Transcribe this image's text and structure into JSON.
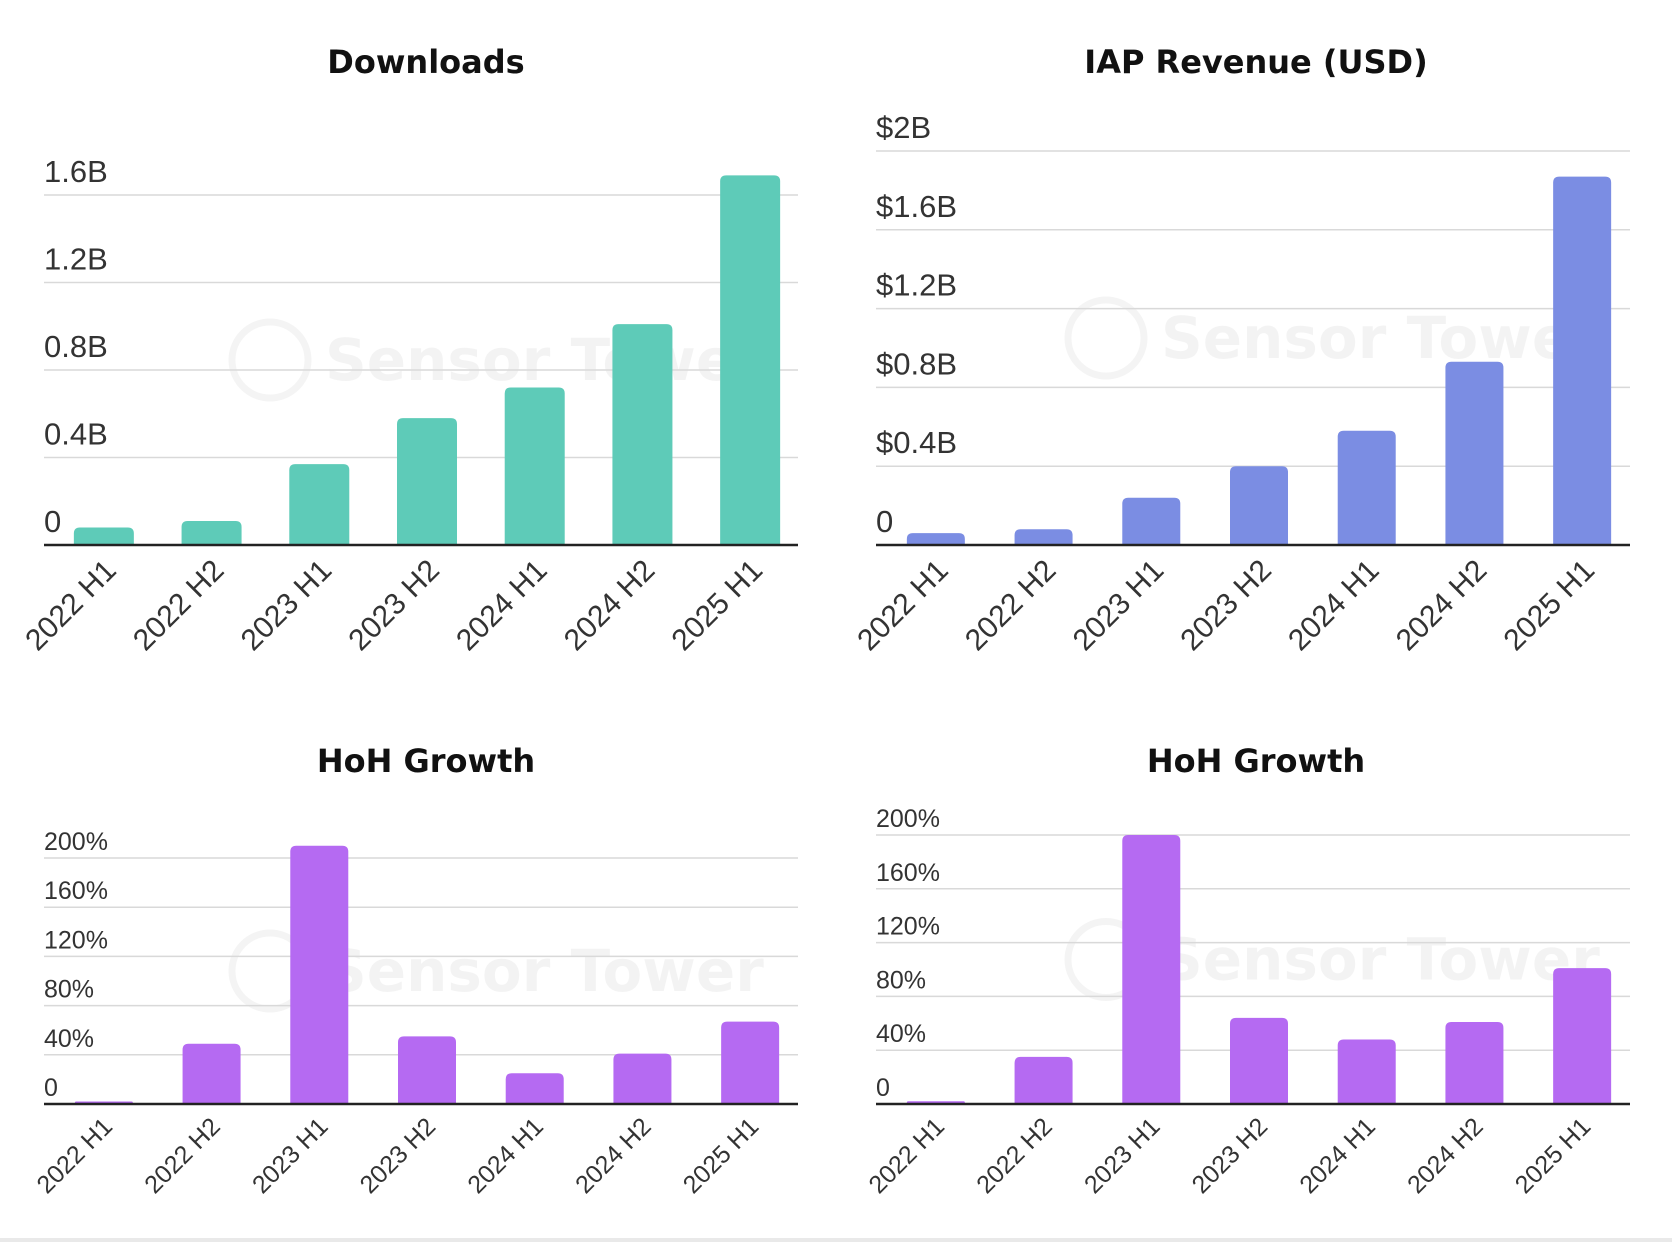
{
  "colors": {
    "downloads": "#5ECBB8",
    "revenue": "#7B8DE3",
    "growth": "#B56AF2"
  },
  "watermark": "Sensor Tower",
  "chart_data": [
    {
      "type": "bar",
      "title": "Downloads",
      "categories": [
        "2022 H1",
        "2022 H2",
        "2023 H1",
        "2023 H2",
        "2024 H1",
        "2024 H2",
        "2025 H1"
      ],
      "values": [
        0.08,
        0.11,
        0.37,
        0.58,
        0.72,
        1.01,
        1.69
      ],
      "ylim": [
        0,
        1.6
      ],
      "yticks": [
        0,
        0.4,
        0.8,
        1.2,
        1.6
      ],
      "ytick_labels": [
        "0",
        "0.4B",
        "0.8B",
        "1.2B",
        "1.6B"
      ],
      "grid": true,
      "color": "#5ECBB8"
    },
    {
      "type": "bar",
      "title": "IAP Revenue (USD)",
      "categories": [
        "2022 H1",
        "2022 H2",
        "2023 H1",
        "2023 H2",
        "2024 H1",
        "2024 H2",
        "2025 H1"
      ],
      "values": [
        0.06,
        0.08,
        0.24,
        0.4,
        0.58,
        0.93,
        1.87
      ],
      "ylim": [
        0,
        2
      ],
      "yticks": [
        0,
        0.4,
        0.8,
        1.2,
        1.6,
        2
      ],
      "ytick_labels": [
        "0",
        "$0.4B",
        "$0.8B",
        "$1.2B",
        "$1.6B",
        "$2B"
      ],
      "grid": true,
      "color": "#7B8DE3"
    },
    {
      "type": "bar",
      "title": "HoH Growth",
      "categories": [
        "2022 H1",
        "2022 H2",
        "2023 H1",
        "2023 H2",
        "2024 H1",
        "2024 H2",
        "2025 H1"
      ],
      "values": [
        2,
        49,
        210,
        55,
        25,
        41,
        67
      ],
      "ylim": [
        0,
        200
      ],
      "yticks": [
        0,
        40,
        80,
        120,
        160,
        200
      ],
      "ytick_labels": [
        "0",
        "40%",
        "80%",
        "120%",
        "160%",
        "200%"
      ],
      "grid": true,
      "color": "#B56AF2"
    },
    {
      "type": "bar",
      "title": "HoH Growth",
      "categories": [
        "2022 H1",
        "2022 H2",
        "2023 H1",
        "2023 H2",
        "2024 H1",
        "2024 H2",
        "2025 H1"
      ],
      "values": [
        2,
        35,
        200,
        64,
        48,
        61,
        101
      ],
      "ylim": [
        0,
        200
      ],
      "yticks": [
        0,
        40,
        80,
        120,
        160,
        200
      ],
      "ytick_labels": [
        "0",
        "40%",
        "80%",
        "120%",
        "160%",
        "200%"
      ],
      "grid": true,
      "color": "#B56AF2"
    }
  ]
}
